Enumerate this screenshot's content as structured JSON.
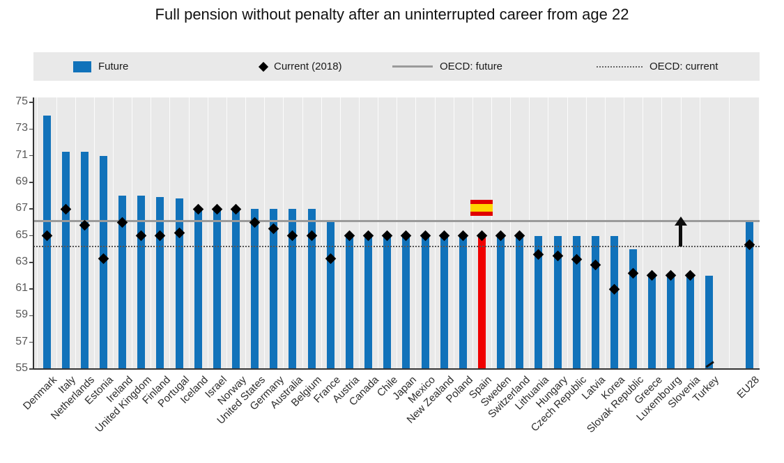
{
  "title": "Full pension without penalty after an uninterrupted career from age 22",
  "legend": {
    "items": [
      {
        "swatch": "bar",
        "label": "Future"
      },
      {
        "swatch": "diamond",
        "label": "Current (2018)"
      },
      {
        "swatch": "solid-line",
        "label": "OECD: future"
      },
      {
        "swatch": "dotted-line",
        "label": "OECD: current"
      }
    ]
  },
  "colors": {
    "bar_future": "#1172ba",
    "bar_highlight": "#f00000",
    "marker_current": "#000000",
    "oecd_future_line": "#9a9a9a",
    "oecd_current_line": "#555555",
    "plot_background": "#e9e9e9",
    "flag_red": "#e00000",
    "flag_yellow": "#ffd600"
  },
  "chart_data": {
    "type": "bar",
    "title": "Full pension without penalty after an uninterrupted career from age 22",
    "xlabel": "",
    "ylabel": "",
    "ylim": [
      55,
      75
    ],
    "yticks": [
      55,
      57,
      59,
      61,
      63,
      65,
      67,
      69,
      71,
      73,
      75
    ],
    "grid": "vertical-white",
    "legend_position": "top",
    "categories": [
      "Denmark",
      "Italy",
      "Netherlands",
      "Estonia",
      "Ireland",
      "United Kingdom",
      "Finland",
      "Portugal",
      "Iceland",
      "Israel",
      "Norway",
      "United States",
      "Germany",
      "Australia",
      "Belgium",
      "France",
      "Austria",
      "Canada",
      "Chile",
      "Japan",
      "Mexico",
      "New Zealand",
      "Poland",
      "Spain",
      "Sweden",
      "Switzerland",
      "Lithuania",
      "Hungary",
      "Czech Republic",
      "Latvia",
      "Korea",
      "Slovak Republic",
      "Greece",
      "Luxembourg",
      "Slovenia",
      "Turkey",
      "EU28"
    ],
    "series": [
      {
        "name": "Future",
        "marker": "bar",
        "values": [
          74,
          71.3,
          71.3,
          71,
          68,
          68,
          67.9,
          67.8,
          67,
          67,
          67,
          67,
          67,
          67,
          67,
          66,
          65,
          65,
          65,
          65,
          65,
          65,
          65,
          65,
          65,
          65,
          65,
          65,
          65,
          65,
          65,
          64,
          62,
          62,
          62,
          62,
          66.2
        ]
      },
      {
        "name": "Current (2018)",
        "marker": "diamond",
        "values": [
          65,
          67,
          65.8,
          63.3,
          66,
          65,
          65,
          65.2,
          67,
          67,
          67,
          66,
          65.5,
          65,
          65,
          63.3,
          65,
          65,
          65,
          65,
          65,
          65,
          65,
          65,
          65,
          65,
          63.6,
          63.5,
          63.2,
          62.8,
          61,
          62.2,
          62,
          62,
          62,
          null,
          64.3
        ]
      }
    ],
    "reference_lines": [
      {
        "name": "OECD: future",
        "value": 66.1,
        "style": "solid"
      },
      {
        "name": "OECD: current",
        "value": 64.2,
        "style": "dotted"
      }
    ],
    "highlight_category": "Spain",
    "annotations": [
      {
        "type": "flag-spain",
        "category": "Spain",
        "y": 66.5
      },
      {
        "type": "up-arrow",
        "x_between": [
          "Luxembourg",
          "Slovenia"
        ],
        "from": 64.2,
        "to": 66.1
      },
      {
        "type": "below-axis-marker",
        "category": "Turkey"
      }
    ]
  }
}
